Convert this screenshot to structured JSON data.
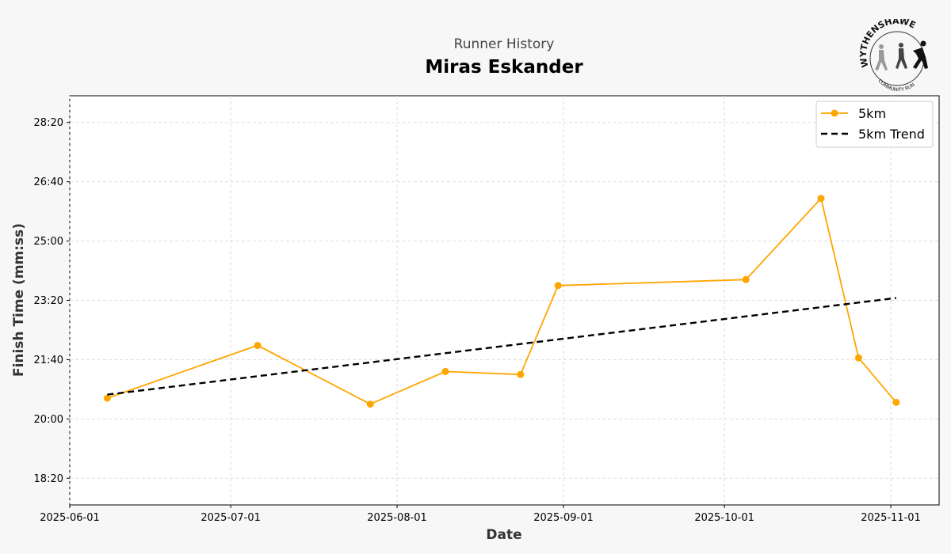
{
  "header": {
    "subtitle": "Runner History",
    "title": "Miras Eskander",
    "logo_text_top": "WYTHENSHAWE",
    "logo_text_bottom": "COMMUNITY RUN"
  },
  "chart_data": {
    "type": "line",
    "xlabel": "Date",
    "ylabel": "Finish Time (mm:ss)",
    "x_ticks": [
      "2025-06-01",
      "2025-07-01",
      "2025-08-01",
      "2025-09-01",
      "2025-10-01",
      "2025-11-01"
    ],
    "y_ticks": [
      "18:20",
      "20:00",
      "21:40",
      "23:20",
      "25:00",
      "26:40",
      "28:20"
    ],
    "xlim": [
      "2025-06-01",
      "2025-11-10"
    ],
    "ylim": [
      "17:35",
      "29:05"
    ],
    "grid": true,
    "legend_position": "top-right",
    "series": [
      {
        "name": "5km",
        "color": "#FFA500",
        "marker": "circle",
        "points": [
          {
            "x": "2025-06-08",
            "y": "20:35"
          },
          {
            "x": "2025-07-06",
            "y": "22:04"
          },
          {
            "x": "2025-07-27",
            "y": "20:25"
          },
          {
            "x": "2025-08-10",
            "y": "21:20"
          },
          {
            "x": "2025-08-24",
            "y": "21:15"
          },
          {
            "x": "2025-08-31",
            "y": "23:45"
          },
          {
            "x": "2025-10-05",
            "y": "23:55"
          },
          {
            "x": "2025-10-19",
            "y": "26:12"
          },
          {
            "x": "2025-10-26",
            "y": "21:43"
          },
          {
            "x": "2025-11-02",
            "y": "20:28"
          }
        ]
      },
      {
        "name": "5km Trend",
        "color": "#000000",
        "style": "dashed",
        "points": [
          {
            "x": "2025-06-08",
            "y": "20:41"
          },
          {
            "x": "2025-11-02",
            "y": "23:24"
          }
        ]
      }
    ]
  }
}
